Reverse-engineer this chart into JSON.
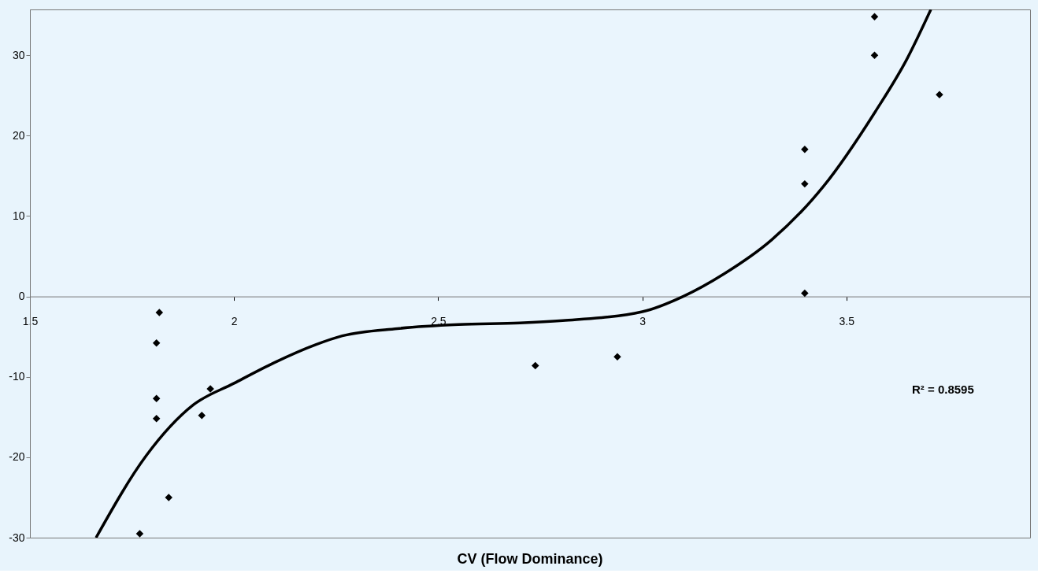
{
  "chart_data": {
    "type": "scatter",
    "xlabel": "CV (Flow Dominance)",
    "xlim": [
      1.5,
      3.95
    ],
    "xticks": [
      1.5,
      2,
      2.5,
      3,
      3.5
    ],
    "ylim": [
      -30,
      35.7
    ],
    "yticks": [
      -30,
      -20,
      -10,
      0,
      10,
      20,
      30
    ],
    "grid": false,
    "legend": false,
    "annotations": [
      "R² = 0.8595"
    ],
    "series": [
      {
        "type": "scatter",
        "marker": "diamond",
        "color": "#000000",
        "x": [
          1.769,
          1.817,
          1.81,
          1.81,
          1.81,
          1.84,
          1.921,
          1.942,
          2.738,
          2.939,
          3.398,
          3.398,
          3.398,
          3.569,
          3.569,
          3.728
        ],
        "values": [
          -29.5,
          -2.0,
          -5.8,
          -12.7,
          -15.2,
          -25.0,
          -14.8,
          -11.5,
          -8.6,
          -7.5,
          18.3,
          14.0,
          0.4,
          34.8,
          30.0,
          25.1
        ]
      },
      {
        "type": "line",
        "marker": "none",
        "line_style": "solid",
        "color": "#000000",
        "x": [
          1.662,
          1.785,
          1.9,
          2.0,
          2.1,
          2.2,
          2.265,
          2.4,
          2.55,
          2.7,
          2.805,
          3.0,
          3.1,
          3.2,
          3.316,
          3.444,
          3.571,
          3.648,
          3.707
        ],
        "values": [
          -30,
          -19.8,
          -13.5,
          -10.8,
          -8.2,
          -6.0,
          -4.9,
          -4.0,
          -3.5,
          -3.3,
          -3.0,
          -1.9,
          0,
          2.8,
          7.0,
          13.7,
          23.0,
          29.5,
          35.7
        ]
      }
    ]
  }
}
